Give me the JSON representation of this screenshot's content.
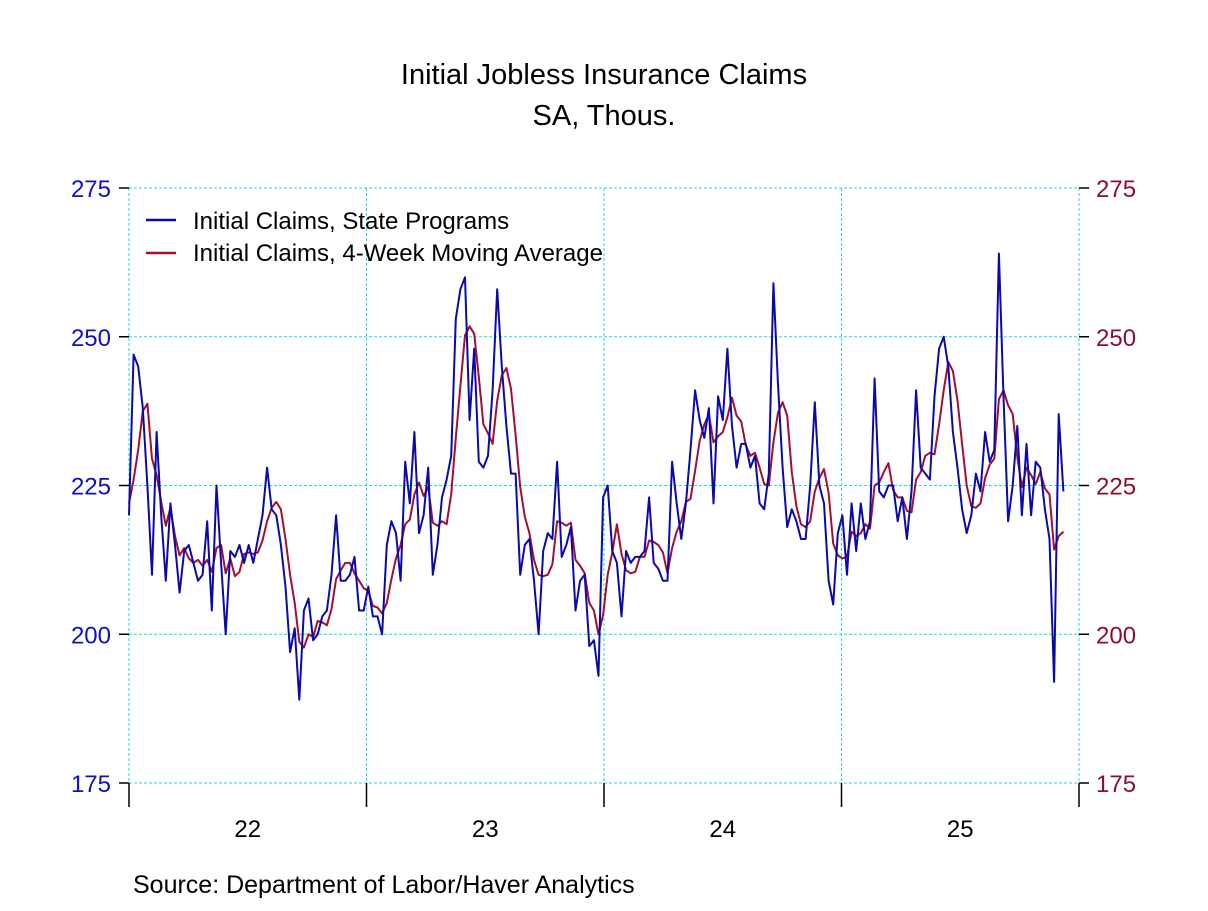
{
  "chart_data": {
    "type": "line",
    "title": "Initial Jobless Insurance Claims",
    "subtitle": "SA, Thous.",
    "source": "Source:  Department of Labor/Haver Analytics",
    "xlabel": "",
    "ylabel": "",
    "ylim": [
      175,
      275
    ],
    "yticks": [
      "175",
      "200",
      "225",
      "250",
      "275"
    ],
    "xticks": [
      "22",
      "23",
      "24",
      "25"
    ],
    "x_frequency": "weekly",
    "grid": true,
    "legend_position": "top-left",
    "colors": {
      "left_axis": "#1010c0",
      "right_axis": "#8b1030",
      "grid": "#22d8e0"
    },
    "series": [
      {
        "name": "Initial Claims, State Programs",
        "color": "#0a0aa8",
        "values_by_year": {
          "22": [
            220,
            247,
            245,
            238,
            225,
            210,
            234,
            220,
            209,
            222,
            215,
            207,
            214,
            215,
            212,
            209,
            210,
            219,
            204,
            225,
            212,
            200,
            214,
            213,
            215,
            212,
            215,
            212,
            216,
            220,
            228,
            221,
            220,
            215,
            208,
            197,
            201,
            189,
            204,
            206,
            199,
            200,
            203,
            204,
            210,
            220,
            209,
            209,
            210,
            213,
            204,
            204
          ],
          "23": [
            208,
            203,
            203,
            200,
            215,
            219,
            217,
            209,
            229,
            222,
            234,
            217,
            220,
            228,
            210,
            215,
            223,
            226,
            230,
            253,
            258,
            260,
            236,
            248,
            229,
            228,
            230,
            241,
            258,
            245,
            235,
            227,
            227,
            210,
            215,
            216,
            209,
            200,
            214,
            217,
            216,
            229,
            213,
            215,
            218,
            204,
            209,
            210,
            198,
            199,
            193,
            223
          ],
          "24": [
            225,
            214,
            212,
            203,
            214,
            212,
            213,
            213,
            214,
            223,
            212,
            211,
            209,
            209,
            229,
            222,
            216,
            222,
            231,
            241,
            236,
            233,
            238,
            222,
            240,
            236,
            248,
            235,
            228,
            232,
            232,
            228,
            230,
            222,
            221,
            227,
            259,
            242,
            228,
            218,
            221,
            219,
            216,
            216,
            225,
            239,
            225,
            222,
            209,
            205,
            217,
            220
          ],
          "25": [
            210,
            222,
            214,
            222,
            216,
            219,
            243,
            224,
            223,
            225,
            225,
            219,
            223,
            216,
            224,
            241,
            228,
            227,
            226,
            240,
            248,
            250,
            245,
            234,
            228,
            221,
            217,
            220,
            227,
            224,
            234,
            229,
            231,
            264,
            240,
            219,
            225,
            235,
            220,
            232,
            220,
            229,
            228,
            221,
            216,
            192,
            237,
            224
          ]
        }
      },
      {
        "name": "Initial Claims, 4-Week Moving Average",
        "color": "#a01030",
        "values_by_year": {
          "22": [
            222,
            226,
            231,
            237.5,
            238.75,
            229.5,
            226.75,
            222.25,
            218.25,
            221.25,
            216.5,
            213.25,
            214.5,
            212.75,
            212,
            212.5,
            211.5,
            212.5,
            210.5,
            214.5,
            215,
            210.25,
            212.75,
            209.75,
            210.5,
            213.5,
            213.75,
            213.5,
            213.75,
            215.75,
            219,
            221.25,
            222.25,
            221,
            216,
            210,
            205.25,
            198.75,
            197.75,
            200,
            199.5,
            202.25,
            202,
            201.5,
            204.25,
            209.25,
            210.75,
            212,
            212,
            210.25,
            209,
            207.75
          ],
          "23": [
            207.25,
            204.75,
            204.5,
            203.5,
            205.25,
            209.25,
            212.75,
            215,
            218.5,
            219.25,
            223.5,
            225.5,
            223.25,
            224.75,
            218.75,
            218.25,
            219,
            218.5,
            223.5,
            233,
            241.75,
            250.25,
            251.75,
            250.5,
            243.25,
            235.25,
            233.75,
            232,
            239.25,
            243.5,
            244.75,
            241.25,
            233.5,
            224.75,
            219.75,
            217,
            212.5,
            210,
            209.75,
            210,
            211.75,
            219,
            218.75,
            218.25,
            218.75,
            212.5,
            211.5,
            210.25,
            205.25,
            204,
            200,
            203.25
          ],
          "24": [
            210,
            213.75,
            218.5,
            213.5,
            210.75,
            210.25,
            210.5,
            213,
            213,
            215.75,
            215.5,
            215,
            213.75,
            210.25,
            214.5,
            217.25,
            219,
            222.25,
            222.75,
            227.5,
            232.5,
            235.25,
            237,
            232.25,
            233.25,
            234,
            236.5,
            239.75,
            236.75,
            235.75,
            231.75,
            230,
            230.5,
            228,
            225.25,
            225,
            232.25,
            237.25,
            239,
            236.75,
            227.25,
            221.5,
            218.5,
            218,
            219,
            224,
            226.25,
            227.75,
            223.75,
            215.25,
            213.25,
            212.75
          ],
          "25": [
            213,
            217.25,
            216.5,
            217,
            218.5,
            217.75,
            225,
            225.5,
            227.25,
            228.75,
            224.25,
            223,
            223,
            220.75,
            220.5,
            226,
            227.25,
            230,
            230.5,
            230.25,
            235.25,
            241,
            245.75,
            244.25,
            239.25,
            232,
            225,
            221.5,
            221.25,
            222,
            226.25,
            228.5,
            229.5,
            239.5,
            241,
            238.5,
            237,
            229.75,
            224.75,
            228,
            226.75,
            225.25,
            227.25,
            224.5,
            223.5,
            214.25,
            216.5,
            217.25
          ]
        }
      }
    ]
  }
}
